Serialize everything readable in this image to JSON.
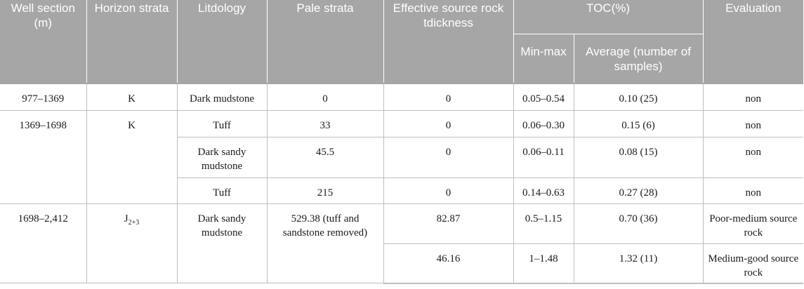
{
  "headers": {
    "well_section": "Well section (m)",
    "horizon": "Horizon strata",
    "litdology": "Litdology",
    "pale_strata": "Pale strata",
    "effective": "Effective source rock tdickness",
    "toc": "TOC(%)",
    "toc_minmax": "Min-max",
    "toc_average": "Average (number of samples)",
    "evaluation": "Evaluation"
  },
  "rows": [
    {
      "well": "977–1369",
      "horizon": "K",
      "lith": "Dark mudstone",
      "pale": "0",
      "eff": "0",
      "minmax": "0.05–0.54",
      "avg": "0.10 (25)",
      "eval": "non"
    },
    {
      "well": "1369–1698",
      "horizon": "K",
      "lith": "Tuff",
      "pale": "33",
      "eff": "0",
      "minmax": "0.06–0.30",
      "avg": "0.15 (6)",
      "eval": "non"
    },
    {
      "lith": "Dark sandy mudstone",
      "pale": "45.5",
      "eff": "0",
      "minmax": "0.06–0.11",
      "avg": "0.08 (15)",
      "eval": "non"
    },
    {
      "lith": "Tuff",
      "pale": "215",
      "eff": "0",
      "minmax": "0.14–0.63",
      "avg": "0.27 (28)",
      "eval": "non"
    },
    {
      "well": "1698–2,412",
      "horizon_base": "J",
      "horizon_sub": "2+3",
      "lith": "Dark sandy mudstone",
      "pale": "529.38 (tuff and sandstone removed)",
      "eff": "82.87",
      "minmax": "0.5–1.15",
      "avg": "0.70 (36)",
      "eval": "Poor-medium source rock"
    },
    {
      "eff": "46.16",
      "minmax": "1–1.48",
      "avg": "1.32 (11)",
      "eval": "Medium-good source rock"
    }
  ]
}
